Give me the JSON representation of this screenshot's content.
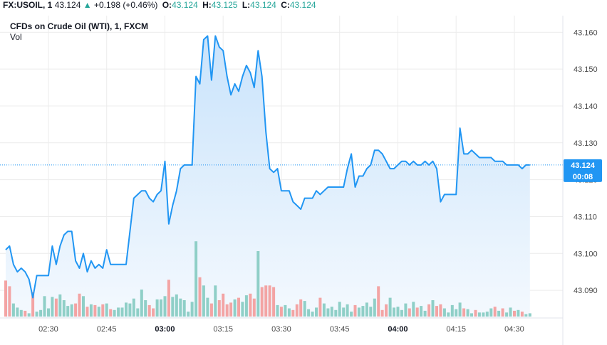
{
  "header": {
    "symbol": "FX:USOIL, 1",
    "last": "43.124",
    "arrow": "▲",
    "change": "+0.198 (+0.46%)",
    "o_label": "O:",
    "o_value": "43.124",
    "h_label": "H:",
    "h_value": "43.125",
    "l_label": "L:",
    "l_value": "43.124",
    "c_label": "C:",
    "c_value": "43.124"
  },
  "colors": {
    "line": "#2196f3",
    "area_top": "#c9e3fb",
    "area_bottom": "#f4f9fe",
    "vol_up": "#8fcfc7",
    "vol_down": "#f3a4a4",
    "price_tag": "#2196f3",
    "grid": "#ececec"
  },
  "chart_data": {
    "type": "area",
    "title": "CFDs on Crude Oil (WTI), 1, FXCM",
    "volume_label": "Vol",
    "ylim": [
      43.0825,
      43.1645
    ],
    "y_ticks": [
      "43.160",
      "43.150",
      "43.140",
      "43.130",
      "43.124",
      "43.120",
      "43.110",
      "43.100",
      "43.090"
    ],
    "x_ticks": [
      {
        "label": "02:30",
        "bold": false,
        "i": 11
      },
      {
        "label": "02:45",
        "bold": false,
        "i": 26
      },
      {
        "label": "03:00",
        "bold": true,
        "i": 41
      },
      {
        "label": "03:15",
        "bold": false,
        "i": 56
      },
      {
        "label": "03:30",
        "bold": false,
        "i": 71
      },
      {
        "label": "03:45",
        "bold": false,
        "i": 86
      },
      {
        "label": "04:00",
        "bold": true,
        "i": 101
      },
      {
        "label": "04:15",
        "bold": false,
        "i": 116
      },
      {
        "label": "04:30",
        "bold": false,
        "i": 131
      }
    ],
    "last_price": "43.124",
    "countdown": "00:08",
    "close": [
      43.101,
      43.102,
      43.097,
      43.095,
      43.096,
      43.095,
      43.093,
      43.088,
      43.094,
      43.094,
      43.094,
      43.094,
      43.102,
      43.097,
      43.102,
      43.105,
      43.106,
      43.106,
      43.098,
      43.096,
      43.1,
      43.095,
      43.098,
      43.096,
      43.097,
      43.096,
      43.101,
      43.097,
      43.097,
      43.097,
      43.097,
      43.097,
      43.106,
      43.115,
      43.116,
      43.117,
      43.117,
      43.115,
      43.114,
      43.116,
      43.117,
      43.125,
      43.108,
      43.113,
      43.117,
      43.123,
      43.124,
      43.124,
      43.124,
      43.148,
      43.146,
      43.158,
      43.159,
      43.147,
      43.159,
      43.156,
      43.155,
      43.148,
      43.143,
      43.146,
      43.144,
      43.148,
      43.151,
      43.149,
      43.145,
      43.155,
      43.148,
      43.133,
      43.123,
      43.122,
      43.123,
      43.117,
      43.117,
      43.117,
      43.114,
      43.113,
      43.112,
      43.115,
      43.115,
      43.115,
      43.117,
      43.116,
      43.117,
      43.118,
      43.118,
      43.118,
      43.118,
      43.118,
      43.123,
      43.127,
      43.118,
      43.121,
      43.121,
      43.123,
      43.124,
      43.128,
      43.128,
      43.127,
      43.125,
      43.123,
      43.123,
      43.124,
      43.125,
      43.125,
      43.124,
      43.125,
      43.124,
      43.124,
      43.125,
      43.124,
      43.125,
      43.123,
      43.114,
      43.116,
      43.116,
      43.116,
      43.116,
      43.134,
      43.127,
      43.127,
      43.128,
      43.127,
      43.126,
      43.126,
      43.126,
      43.126,
      43.125,
      43.125,
      43.125,
      43.124,
      43.124,
      43.124,
      43.124,
      43.123,
      43.124,
      43.124
    ],
    "volume": [
      44,
      37,
      16,
      11,
      8,
      7,
      4,
      30,
      6,
      8,
      25,
      10,
      24,
      22,
      27,
      20,
      13,
      15,
      16,
      28,
      25,
      12,
      15,
      14,
      12,
      15,
      16,
      9,
      8,
      11,
      11,
      17,
      16,
      22,
      10,
      33,
      20,
      14,
      10,
      21,
      21,
      25,
      45,
      24,
      27,
      22,
      20,
      6,
      18,
      92,
      48,
      38,
      23,
      16,
      38,
      20,
      28,
      15,
      17,
      21,
      23,
      18,
      26,
      28,
      22,
      80,
      36,
      38,
      38,
      36,
      14,
      12,
      14,
      10,
      8,
      15,
      21,
      19,
      9,
      6,
      11,
      23,
      16,
      10,
      12,
      8,
      18,
      11,
      15,
      6,
      14,
      11,
      13,
      17,
      12,
      22,
      37,
      8,
      15,
      23,
      11,
      12,
      8,
      16,
      10,
      18,
      11,
      13,
      7,
      15,
      20,
      13,
      15,
      10,
      5,
      14,
      9,
      17,
      10,
      9,
      4,
      8,
      5,
      5,
      6,
      10,
      12,
      7,
      10,
      5,
      11,
      7,
      8,
      6,
      3,
      4
    ],
    "volume_dir": [
      -1,
      -1,
      1,
      1,
      1,
      -1,
      1,
      -1,
      1,
      1,
      1,
      1,
      1,
      -1,
      1,
      1,
      1,
      1,
      -1,
      -1,
      1,
      -1,
      1,
      -1,
      1,
      -1,
      1,
      -1,
      1,
      1,
      1,
      1,
      1,
      1,
      1,
      1,
      1,
      -1,
      -1,
      1,
      1,
      1,
      -1,
      1,
      1,
      1,
      1,
      1,
      1,
      1,
      -1,
      1,
      1,
      -1,
      1,
      -1,
      -1,
      -1,
      -1,
      1,
      -1,
      1,
      1,
      -1,
      -1,
      1,
      -1,
      -1,
      -1,
      -1,
      1,
      -1,
      1,
      1,
      -1,
      -1,
      -1,
      1,
      1,
      1,
      1,
      -1,
      1,
      1,
      1,
      1,
      1,
      1,
      1,
      1,
      -1,
      1,
      1,
      1,
      1,
      1,
      -1,
      -1,
      -1,
      1,
      1,
      1,
      1,
      1,
      -1,
      1,
      -1,
      1,
      1,
      -1,
      1,
      -1,
      -1,
      1,
      1,
      1,
      1,
      1,
      -1,
      1,
      1,
      -1,
      1,
      1,
      1,
      1,
      -1,
      1,
      -1,
      1,
      1,
      -1,
      1,
      -1,
      1,
      1
    ]
  }
}
